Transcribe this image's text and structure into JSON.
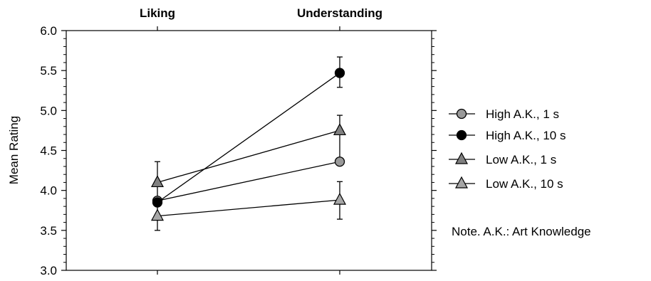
{
  "chart_data": {
    "type": "line",
    "categories": [
      "Liking",
      "Understanding"
    ],
    "ylabel": "Mean Rating",
    "ylim": [
      3.0,
      6.0
    ],
    "yticks": [
      "3.0",
      "3.5",
      "4.0",
      "4.5",
      "5.0",
      "5.5",
      "6.0"
    ],
    "series": [
      {
        "name": "High A.K., 1 s",
        "marker": "circle",
        "color": "#999999",
        "values": [
          3.87,
          4.36
        ]
      },
      {
        "name": "High A.K., 10 s",
        "marker": "circle",
        "color": "#000000",
        "values": [
          3.85,
          5.47
        ]
      },
      {
        "name": "Low A.K., 1 s",
        "marker": "triangle",
        "color": "#808080",
        "values": [
          4.1,
          4.75
        ]
      },
      {
        "name": "Low A.K., 10 s",
        "marker": "triangle",
        "color": "#a6a6a6",
        "values": [
          3.68,
          3.88
        ]
      }
    ],
    "error_bars": [
      {
        "category": "Liking",
        "low": 3.5,
        "high": 4.36
      },
      {
        "category": "Understanding",
        "low": 3.64,
        "high": 4.11
      },
      {
        "category": "Understanding",
        "low": 4.36,
        "high": 4.94
      },
      {
        "category": "Understanding",
        "low": 5.29,
        "high": 5.67
      }
    ],
    "grid": false,
    "legend_position": "right",
    "note": "Note.  A.K.: Art Knowledge"
  }
}
